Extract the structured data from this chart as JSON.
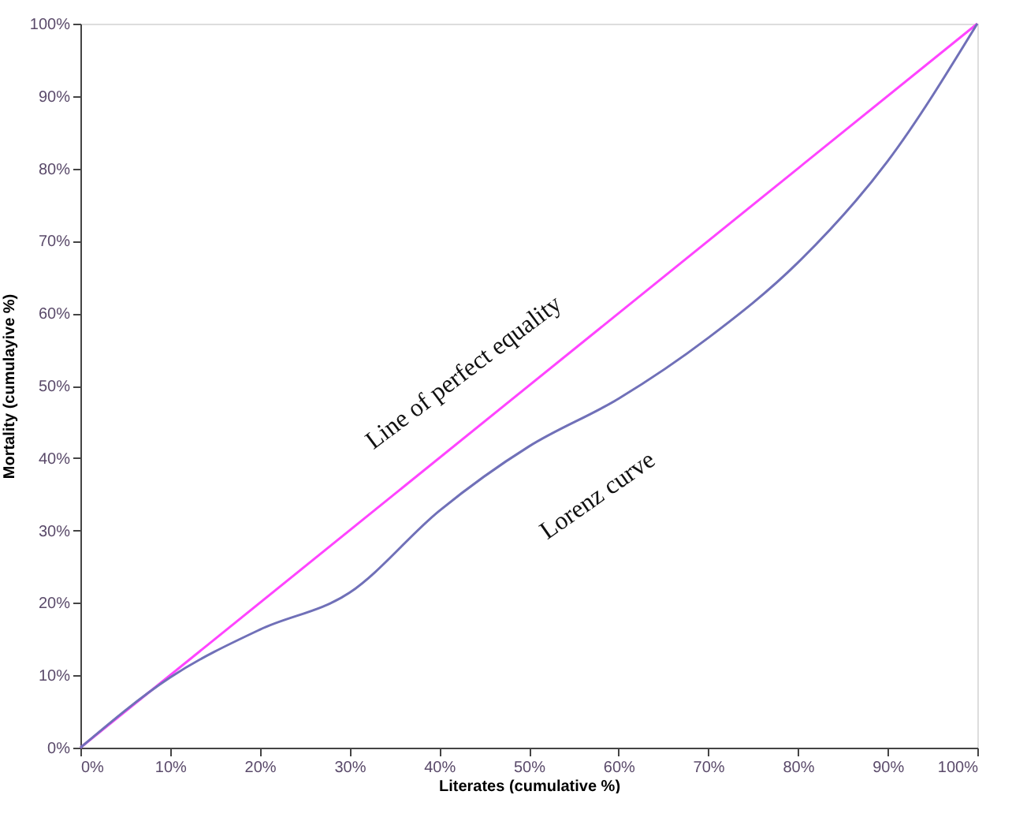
{
  "chart_data": {
    "type": "line",
    "xlabel": "Literates (cumulative %)",
    "ylabel": "Mortality (cumulayive %)",
    "xlim": [
      0,
      100
    ],
    "ylim": [
      0,
      100
    ],
    "xticks": [
      {
        "value": 0,
        "label": "0%"
      },
      {
        "value": 10,
        "label": "10%"
      },
      {
        "value": 20,
        "label": "20%"
      },
      {
        "value": 30,
        "label": "30%"
      },
      {
        "value": 40,
        "label": "40%"
      },
      {
        "value": 50,
        "label": "50%"
      },
      {
        "value": 60,
        "label": "60%"
      },
      {
        "value": 70,
        "label": "70%"
      },
      {
        "value": 80,
        "label": "80%"
      },
      {
        "value": 90,
        "label": "90%"
      },
      {
        "value": 100,
        "label": "100%"
      }
    ],
    "yticks": [
      {
        "value": 0,
        "label": "0%"
      },
      {
        "value": 10,
        "label": "10%"
      },
      {
        "value": 20,
        "label": "20%"
      },
      {
        "value": 30,
        "label": "30%"
      },
      {
        "value": 40,
        "label": "40%"
      },
      {
        "value": 50,
        "label": "50%"
      },
      {
        "value": 60,
        "label": "60%"
      },
      {
        "value": 70,
        "label": "70%"
      },
      {
        "value": 80,
        "label": "80%"
      },
      {
        "value": 90,
        "label": "90%"
      },
      {
        "value": 100,
        "label": "100%"
      }
    ],
    "grid": false,
    "marker": "none",
    "line_style": "solid",
    "series": [
      {
        "color": "#ff44ff",
        "x": [
          0,
          100
        ],
        "values": [
          0,
          100
        ]
      },
      {
        "color": "#7070b8",
        "x": [
          0,
          10,
          20,
          30,
          40,
          50,
          60,
          70,
          80,
          90,
          100
        ],
        "values": [
          0,
          9.7,
          16.3,
          21.4,
          32.7,
          41.6,
          48.2,
          56.6,
          67,
          81,
          100
        ]
      }
    ],
    "annotations": [
      "Line of perfect equality",
      "Lorenz curve"
    ]
  }
}
